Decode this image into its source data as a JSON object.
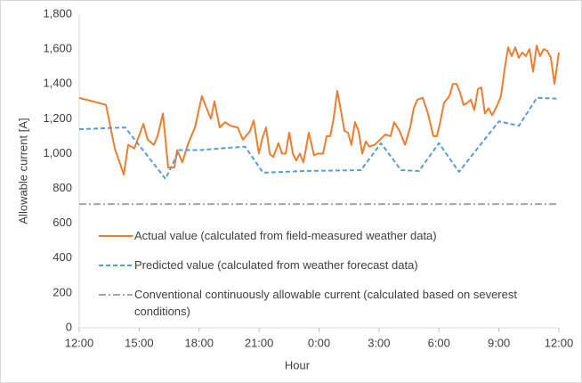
{
  "chart_data": {
    "type": "line",
    "xlabel": "Hour",
    "ylabel": "Allowable current [A]",
    "xlim": [
      0,
      24
    ],
    "ylim": [
      0,
      1800
    ],
    "xticks": [
      {
        "value": 0,
        "label": "12:00"
      },
      {
        "value": 3,
        "label": "15:00"
      },
      {
        "value": 6,
        "label": "18:00"
      },
      {
        "value": 9,
        "label": "21:00"
      },
      {
        "value": 12,
        "label": "0:00"
      },
      {
        "value": 15,
        "label": "3:00"
      },
      {
        "value": 18,
        "label": "6:00"
      },
      {
        "value": 21,
        "label": "9:00"
      },
      {
        "value": 24,
        "label": "12:00"
      }
    ],
    "yticks": [
      0,
      200,
      400,
      600,
      800,
      {
        "value": 1000,
        "label": "1,000"
      },
      {
        "value": 1200,
        "label": "1,200"
      },
      {
        "value": 1400,
        "label": "1,400"
      },
      {
        "value": 1600,
        "label": "1,600"
      },
      {
        "value": 1800,
        "label": "1,800"
      }
    ],
    "grid": false,
    "legend": "bottom-left",
    "series": [
      {
        "name": "Actual value (calculated from field-measured weather data)",
        "color": "#ed7d31",
        "dash": "solid",
        "x": [
          0,
          1.34,
          1.78,
          2.23,
          2.45,
          2.76,
          3.21,
          3.43,
          3.74,
          3.92,
          4.19,
          4.45,
          4.76,
          4.9,
          5.16,
          5.43,
          5.79,
          6.14,
          6.41,
          6.59,
          6.77,
          7.03,
          7.3,
          7.57,
          7.93,
          8.19,
          8.55,
          8.73,
          8.99,
          9.17,
          9.35,
          9.53,
          9.71,
          9.97,
          10.15,
          10.33,
          10.51,
          10.69,
          10.86,
          11.04,
          11.22,
          11.49,
          11.75,
          11.93,
          12.2,
          12.38,
          12.56,
          12.73,
          12.91,
          13.09,
          13.27,
          13.45,
          13.62,
          13.8,
          13.98,
          14.16,
          14.34,
          14.51,
          14.78,
          15.05,
          15.32,
          15.58,
          15.76,
          16.03,
          16.3,
          16.56,
          16.74,
          16.92,
          17.19,
          17.45,
          17.72,
          17.9,
          18.08,
          18.25,
          18.52,
          18.7,
          18.88,
          19.06,
          19.23,
          19.41,
          19.59,
          19.77,
          19.95,
          20.12,
          20.3,
          20.48,
          20.66,
          20.93,
          21.1,
          21.28,
          21.46,
          21.64,
          21.82,
          21.99,
          22.17,
          22.35,
          22.53,
          22.71,
          22.89,
          23.06,
          23.24,
          23.42,
          23.6,
          23.78,
          24
        ],
        "values": [
          1320,
          1280,
          1030,
          880,
          1050,
          1030,
          1170,
          1080,
          1050,
          1100,
          1230,
          920,
          920,
          1020,
          950,
          1050,
          1150,
          1330,
          1250,
          1200,
          1300,
          1150,
          1180,
          1160,
          1150,
          1080,
          1130,
          1190,
          1000,
          1090,
          1150,
          1000,
          980,
          1060,
          1000,
          1000,
          1120,
          1000,
          960,
          1000,
          950,
          1120,
          990,
          1000,
          1000,
          1100,
          1100,
          1200,
          1360,
          1250,
          1130,
          1120,
          1050,
          1180,
          1130,
          1000,
          1070,
          1040,
          1050,
          1080,
          1110,
          1100,
          1180,
          1130,
          1050,
          1150,
          1260,
          1310,
          1320,
          1230,
          1100,
          1100,
          1190,
          1290,
          1330,
          1400,
          1400,
          1350,
          1280,
          1290,
          1310,
          1250,
          1370,
          1380,
          1230,
          1260,
          1220,
          1280,
          1330,
          1480,
          1610,
          1560,
          1610,
          1550,
          1580,
          1560,
          1600,
          1470,
          1620,
          1560,
          1600,
          1590,
          1550,
          1400,
          1580
        ]
      },
      {
        "name": "Predicted value (calculated from weather forecast data)",
        "color": "#5b9bd5",
        "dash": "dashed",
        "x": [
          0,
          2.3,
          4.32,
          5,
          6,
          8.3,
          9.2,
          11.2,
          14.1,
          15.1,
          16.1,
          17,
          18,
          19,
          21,
          22,
          22.9,
          24
        ],
        "values": [
          1140,
          1150,
          855,
          1020,
          1020,
          1040,
          890,
          900,
          905,
          1060,
          905,
          900,
          1060,
          895,
          1185,
          1160,
          1320,
          1315
        ]
      },
      {
        "name": "Conventional continuously allowable current (calculated based on severest conditions)",
        "color": "#a5a5a5",
        "dash": "dashdot",
        "x": [
          0,
          24
        ],
        "values": [
          710,
          710
        ]
      }
    ]
  }
}
